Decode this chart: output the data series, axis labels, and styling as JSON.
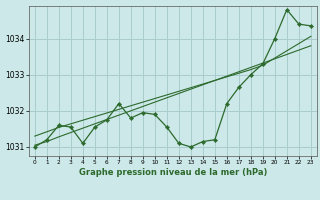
{
  "xlabel": "Graphe pression niveau de la mer (hPa)",
  "bg_color": "#cce8e8",
  "grid_color": "#aacccc",
  "line_color": "#2d6a2d",
  "x_values": [
    0,
    1,
    2,
    3,
    4,
    5,
    6,
    7,
    8,
    9,
    10,
    11,
    12,
    13,
    14,
    15,
    16,
    17,
    18,
    19,
    20,
    21,
    22,
    23
  ],
  "y_main": [
    1031.0,
    1031.2,
    1031.6,
    1031.55,
    1031.1,
    1031.55,
    1031.75,
    1032.2,
    1031.8,
    1031.95,
    1031.9,
    1031.55,
    1031.1,
    1031.0,
    1031.15,
    1031.2,
    1032.2,
    1032.65,
    1033.0,
    1033.3,
    1034.0,
    1034.8,
    1034.4,
    1034.35
  ],
  "y_trend1": [
    1031.05,
    1031.15,
    1031.28,
    1031.4,
    1031.52,
    1031.64,
    1031.76,
    1031.88,
    1032.0,
    1032.12,
    1032.24,
    1032.36,
    1032.48,
    1032.6,
    1032.72,
    1032.84,
    1032.96,
    1033.08,
    1033.2,
    1033.32,
    1033.44,
    1033.56,
    1033.68,
    1033.8
  ],
  "y_trend2": [
    1031.3,
    1031.42,
    1031.54,
    1031.64,
    1031.74,
    1031.84,
    1031.94,
    1032.04,
    1032.14,
    1032.24,
    1032.34,
    1032.44,
    1032.54,
    1032.64,
    1032.74,
    1032.84,
    1032.94,
    1033.04,
    1033.14,
    1033.26,
    1033.46,
    1033.66,
    1033.86,
    1034.06
  ],
  "ylim": [
    1030.75,
    1034.9
  ],
  "yticks": [
    1031,
    1032,
    1033,
    1034
  ],
  "xticks": [
    0,
    1,
    2,
    3,
    4,
    5,
    6,
    7,
    8,
    9,
    10,
    11,
    12,
    13,
    14,
    15,
    16,
    17,
    18,
    19,
    20,
    21,
    22,
    23
  ]
}
